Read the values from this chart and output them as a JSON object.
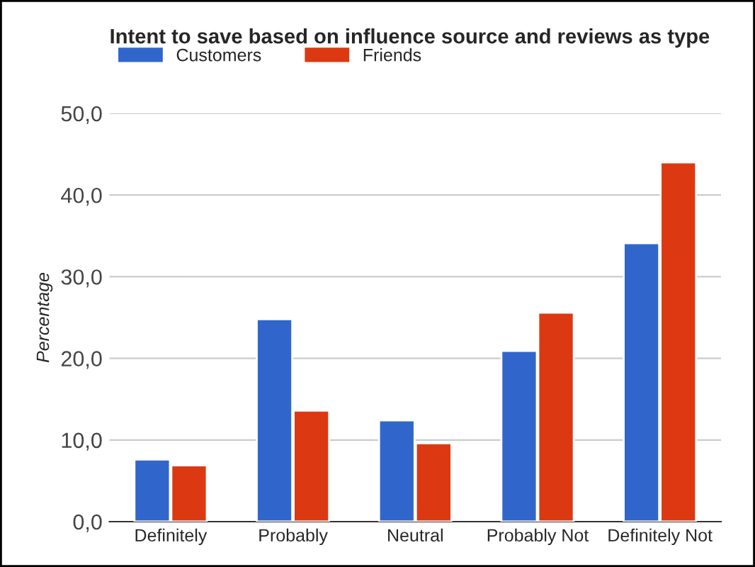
{
  "chart_data": {
    "type": "bar",
    "title": "Intent to save based on influence source and reviews as type",
    "ylabel": "Percentage",
    "categories": [
      "Definitely",
      "Probably",
      "Neutral",
      "Probably Not",
      "Definitely Not"
    ],
    "series": [
      {
        "name": "Customers",
        "color": "#3066cc",
        "values": [
          7.6,
          24.8,
          12.4,
          20.9,
          34.1
        ]
      },
      {
        "name": "Friends",
        "color": "#dc3912",
        "values": [
          6.9,
          13.6,
          9.6,
          25.6,
          44.0
        ]
      }
    ],
    "ylim": [
      0,
      50
    ],
    "yticks": [
      {
        "value": 0,
        "label": "0,0"
      },
      {
        "value": 10,
        "label": "10,0"
      },
      {
        "value": 20,
        "label": "20,0"
      },
      {
        "value": 30,
        "label": "30,0"
      },
      {
        "value": 40,
        "label": "40,0"
      },
      {
        "value": 50,
        "label": "50,0"
      }
    ],
    "grid": "y",
    "legend": "top left"
  }
}
